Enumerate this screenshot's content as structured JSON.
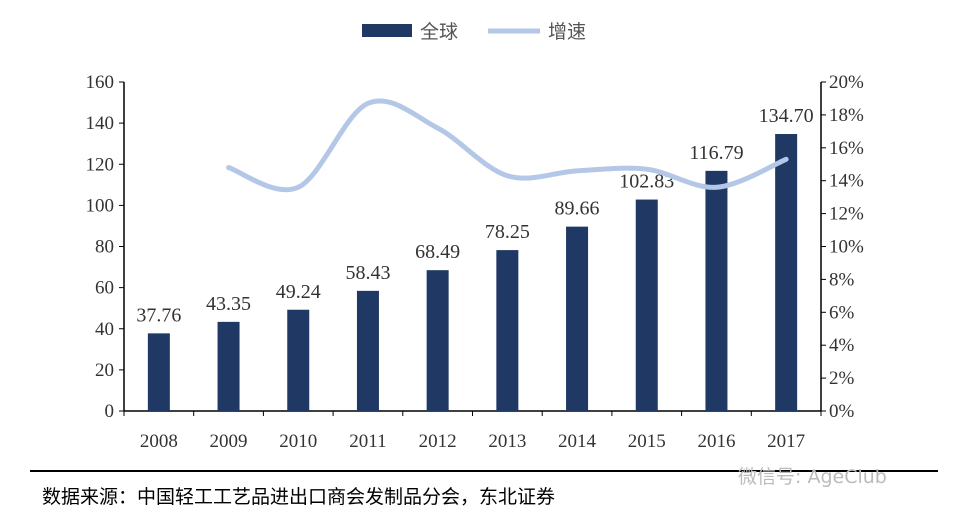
{
  "chart_data": {
    "type": "bar+line",
    "categories": [
      "2008",
      "2009",
      "2010",
      "2011",
      "2012",
      "2013",
      "2014",
      "2015",
      "2016",
      "2017"
    ],
    "series": [
      {
        "name": "全球",
        "type": "bar",
        "axis": "left",
        "color": "#1f3864",
        "values": [
          37.76,
          43.35,
          49.24,
          58.43,
          68.49,
          78.25,
          89.66,
          102.83,
          116.79,
          134.7
        ],
        "labels": [
          "37.76",
          "43.35",
          "49.24",
          "58.43",
          "68.49",
          "78.25",
          "89.66",
          "102.83",
          "116.79",
          "134.70"
        ]
      },
      {
        "name": "增速",
        "type": "line",
        "axis": "right",
        "color": "#b4c7e7",
        "smooth": true,
        "values": [
          null,
          14.8,
          13.6,
          18.7,
          17.2,
          14.3,
          14.6,
          14.7,
          13.6,
          15.3
        ]
      }
    ],
    "y_left": {
      "range": [
        0,
        160
      ],
      "ticks": [
        "0",
        "20",
        "40",
        "60",
        "80",
        "100",
        "120",
        "140",
        "160"
      ]
    },
    "y_right": {
      "range": [
        0,
        20
      ],
      "ticks": [
        "0%",
        "2%",
        "4%",
        "6%",
        "8%",
        "10%",
        "12%",
        "14%",
        "16%",
        "18%",
        "20%"
      ]
    },
    "legend_position": "top-center",
    "grid": false
  },
  "source": "数据来源：中国轻工工艺品进出口商会发制品分会，东北证券",
  "watermark": "微信号: AgeClub"
}
